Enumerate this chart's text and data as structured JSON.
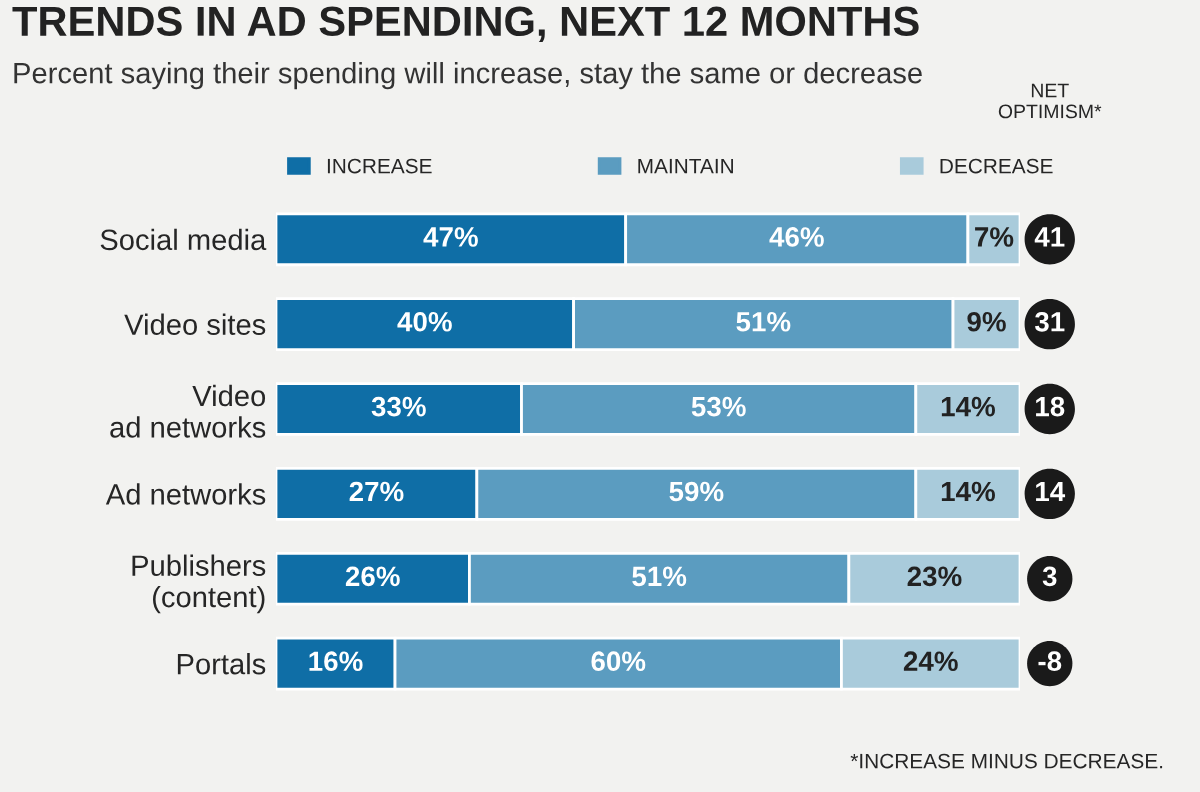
{
  "chart_data": {
    "type": "bar",
    "orientation": "horizontal",
    "stacked": true,
    "title": "TRENDS IN AD SPENDING, NEXT 12 MONTHS",
    "subtitle": "Percent saying their spending will increase, stay the same or decrease",
    "categories": [
      "Social media",
      "Video sites",
      "Video\nad networks",
      "Ad networks",
      "Publishers\n(content)",
      "Portals"
    ],
    "series": [
      {
        "name": "INCREASE",
        "color": "#0f6ea6",
        "values": [
          47,
          40,
          33,
          27,
          26,
          16
        ],
        "value_labels": [
          "47%",
          "40%",
          "33%",
          "27%",
          "26%",
          "16%"
        ]
      },
      {
        "name": "MAINTAIN",
        "color": "#5b9cc0",
        "values": [
          46,
          51,
          53,
          59,
          51,
          60
        ],
        "value_labels": [
          "46%",
          "51%",
          "53%",
          "59%",
          "51%",
          "60%"
        ]
      },
      {
        "name": "DECREASE",
        "color": "#a9cbdb",
        "values": [
          7,
          9,
          14,
          14,
          23,
          24
        ],
        "value_labels": [
          "7%",
          "9%",
          "14%",
          "14%",
          "23%",
          "24%"
        ]
      }
    ],
    "legend": "top",
    "annotations": [
      "NET OPTIMISM*",
      "41",
      "31",
      "18",
      "14",
      "3",
      "-8",
      "*INCREASE MINUS DECREASE."
    ]
  }
}
